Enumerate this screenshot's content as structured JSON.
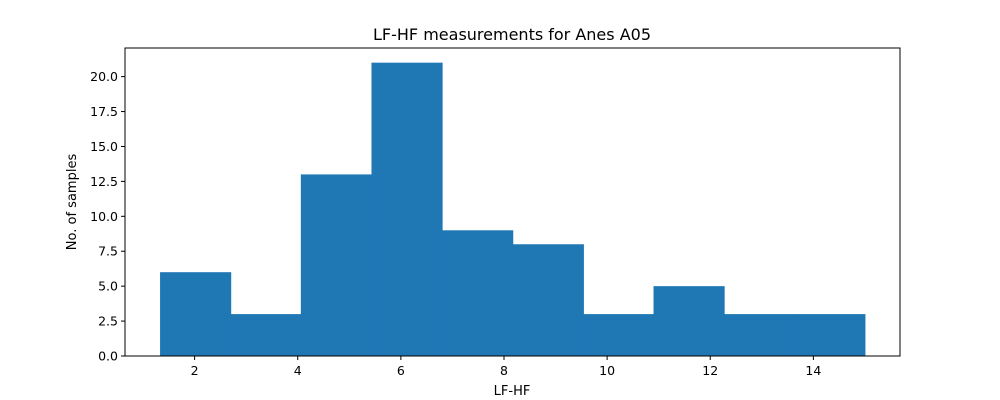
{
  "chart_data": {
    "type": "bar",
    "title": "LF-HF measurements for Anes A05",
    "xlabel": "LF-HF",
    "ylabel": "No. of samples",
    "bin_edges": [
      1.33,
      2.7,
      4.06,
      5.43,
      6.8,
      8.17,
      9.54,
      10.9,
      12.27,
      13.64,
      15.0
    ],
    "values": [
      6,
      3,
      13,
      21,
      9,
      8,
      3,
      5,
      3,
      3
    ],
    "xlim": [
      0.65,
      15.68
    ],
    "ylim": [
      0,
      22.05
    ],
    "x_ticks": [
      2,
      4,
      6,
      8,
      10,
      12,
      14
    ],
    "x_tick_labels": [
      "2",
      "4",
      "6",
      "8",
      "10",
      "12",
      "14"
    ],
    "y_ticks": [
      0,
      2.5,
      5,
      7.5,
      10,
      12.5,
      15,
      17.5,
      20
    ],
    "y_tick_labels": [
      "0.0",
      "2.5",
      "5.0",
      "7.5",
      "10.0",
      "12.5",
      "15.0",
      "17.5",
      "20.0"
    ],
    "bar_color": "#1f77b4",
    "grid": false
  }
}
